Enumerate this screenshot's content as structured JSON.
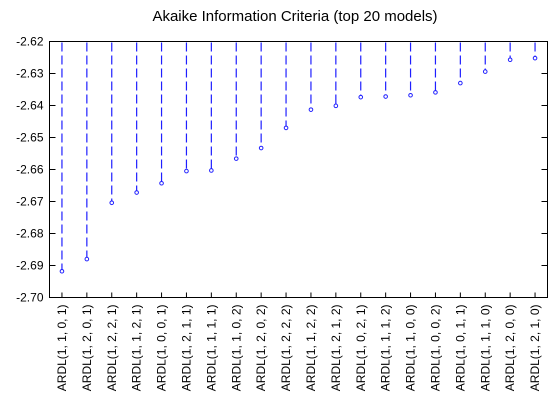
{
  "chart_data": {
    "type": "dropline",
    "title": "Akaike Information Criteria (top 20 models)",
    "xlabel": "",
    "ylabel": "",
    "ylim": [
      -2.7,
      -2.62
    ],
    "yticks": [
      "-2.62",
      "-2.63",
      "-2.64",
      "-2.65",
      "-2.66",
      "-2.67",
      "-2.68",
      "-2.69",
      "-2.70"
    ],
    "grid": false,
    "line_color": "#1f1fff",
    "categories": [
      "ARDL(1, 1, 0, 1)",
      "ARDL(1, 2, 0, 1)",
      "ARDL(1, 2, 2, 1)",
      "ARDL(1, 1, 2, 1)",
      "ARDL(1, 0, 0, 1)",
      "ARDL(1, 2, 1, 1)",
      "ARDL(1, 1, 1, 1)",
      "ARDL(1, 1, 0, 2)",
      "ARDL(1, 2, 0, 2)",
      "ARDL(1, 2, 2, 2)",
      "ARDL(1, 1, 2, 2)",
      "ARDL(1, 2, 1, 2)",
      "ARDL(1, 0, 2, 1)",
      "ARDL(1, 1, 1, 2)",
      "ARDL(1, 1, 0, 0)",
      "ARDL(1, 0, 0, 2)",
      "ARDL(1, 0, 1, 1)",
      "ARDL(1, 1, 1, 0)",
      "ARDL(1, 2, 0, 0)",
      "ARDL(1, 2, 1, 0)"
    ],
    "values": [
      -2.6918,
      -2.688,
      -2.6704,
      -2.6672,
      -2.6643,
      -2.6605,
      -2.6603,
      -2.6566,
      -2.6533,
      -2.647,
      -2.6413,
      -2.6401,
      -2.6374,
      -2.6372,
      -2.6368,
      -2.6359,
      -2.633,
      -2.6294,
      -2.6257,
      -2.6252
    ]
  }
}
